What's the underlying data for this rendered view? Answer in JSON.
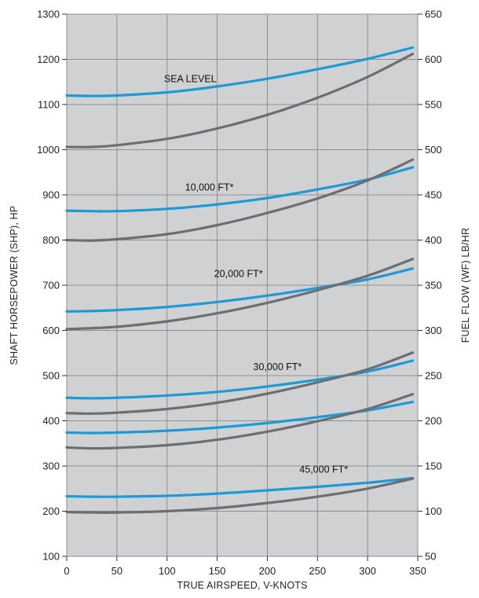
{
  "chart_data": {
    "type": "line",
    "title": "",
    "xlabel": "TRUE AIRSPEED, V-KNOTS",
    "ylabel_left": "SHAFT HORSEPOWER (SHP), HP",
    "ylabel_right": "FUEL FLOW (WF) LB/HR",
    "xlim": [
      0,
      350
    ],
    "ylim_left": [
      100,
      1300
    ],
    "ylim_right": [
      50,
      650
    ],
    "x_ticks": [
      "0",
      "50",
      "100",
      "150",
      "200",
      "250",
      "300",
      "350"
    ],
    "y_left_ticks": [
      "100",
      "200",
      "300",
      "400",
      "500",
      "600",
      "700",
      "800",
      "900",
      "1000",
      "1100",
      "1200",
      "1300"
    ],
    "y_right_ticks": [
      "50",
      "100",
      "150",
      "200",
      "250",
      "300",
      "350",
      "400",
      "450",
      "500",
      "550",
      "600",
      "650"
    ],
    "grid": true,
    "colors": {
      "shp": "#1b9ad6",
      "fuel": "#6d6e71",
      "background": "#cfd1d3",
      "grid": "#8c8e91"
    },
    "altitude_labels": [
      {
        "text": "SEA LEVEL",
        "x": 97,
        "y": 1150
      },
      {
        "text": "10,000 FT*",
        "x": 118,
        "y": 910
      },
      {
        "text": "20,000 FT*",
        "x": 147,
        "y": 718
      },
      {
        "text": "30,000 FT*",
        "x": 186,
        "y": 512
      },
      {
        "text": "45,000 FT*",
        "x": 232,
        "y": 285
      }
    ],
    "series": [
      {
        "group": "SEA LEVEL",
        "kind": "shp",
        "axis": "left",
        "points": [
          [
            0,
            1120
          ],
          [
            25,
            1119
          ],
          [
            50,
            1120
          ],
          [
            100,
            1127
          ],
          [
            150,
            1140
          ],
          [
            200,
            1157
          ],
          [
            250,
            1178
          ],
          [
            300,
            1201
          ],
          [
            345,
            1226
          ]
        ]
      },
      {
        "group": "SEA LEVEL",
        "kind": "fuel",
        "axis": "left",
        "points": [
          [
            0,
            1006
          ],
          [
            25,
            1006
          ],
          [
            50,
            1010
          ],
          [
            100,
            1024
          ],
          [
            150,
            1047
          ],
          [
            200,
            1077
          ],
          [
            250,
            1115
          ],
          [
            300,
            1161
          ],
          [
            345,
            1212
          ]
        ]
      },
      {
        "group": "10,000 FT*",
        "kind": "shp",
        "axis": "left",
        "points": [
          [
            0,
            865
          ],
          [
            25,
            864
          ],
          [
            50,
            864
          ],
          [
            100,
            869
          ],
          [
            150,
            879
          ],
          [
            200,
            893
          ],
          [
            250,
            912
          ],
          [
            300,
            934
          ],
          [
            345,
            961
          ]
        ]
      },
      {
        "group": "10,000 FT*",
        "kind": "fuel",
        "axis": "left",
        "points": [
          [
            0,
            800
          ],
          [
            25,
            799
          ],
          [
            50,
            802
          ],
          [
            100,
            813
          ],
          [
            150,
            833
          ],
          [
            200,
            860
          ],
          [
            250,
            892
          ],
          [
            300,
            932
          ],
          [
            345,
            978
          ]
        ]
      },
      {
        "group": "20,000 FT*",
        "kind": "shp",
        "axis": "left",
        "points": [
          [
            0,
            642
          ],
          [
            25,
            643
          ],
          [
            50,
            645
          ],
          [
            100,
            652
          ],
          [
            150,
            663
          ],
          [
            200,
            677
          ],
          [
            250,
            694
          ],
          [
            300,
            713
          ],
          [
            345,
            737
          ]
        ]
      },
      {
        "group": "20,000 FT*",
        "kind": "fuel",
        "axis": "left",
        "points": [
          [
            0,
            603
          ],
          [
            25,
            605
          ],
          [
            50,
            608
          ],
          [
            100,
            620
          ],
          [
            150,
            638
          ],
          [
            200,
            661
          ],
          [
            250,
            689
          ],
          [
            300,
            721
          ],
          [
            345,
            758
          ]
        ]
      },
      {
        "group": "30,000 FT*",
        "kind": "shp",
        "axis": "left",
        "points": [
          [
            0,
            451
          ],
          [
            25,
            450
          ],
          [
            50,
            451
          ],
          [
            100,
            456
          ],
          [
            150,
            464
          ],
          [
            200,
            476
          ],
          [
            250,
            491
          ],
          [
            300,
            509
          ],
          [
            345,
            533
          ]
        ]
      },
      {
        "group": "30,000 FT*",
        "kind": "fuel",
        "axis": "left",
        "points": [
          [
            0,
            417
          ],
          [
            25,
            416
          ],
          [
            50,
            418
          ],
          [
            100,
            426
          ],
          [
            150,
            440
          ],
          [
            200,
            460
          ],
          [
            250,
            485
          ],
          [
            300,
            514
          ],
          [
            345,
            551
          ]
        ]
      },
      {
        "group": "30,000 FT*",
        "kind": "shp",
        "axis": "left",
        "points": [
          [
            0,
            374
          ],
          [
            25,
            373
          ],
          [
            50,
            374
          ],
          [
            100,
            378
          ],
          [
            150,
            385
          ],
          [
            200,
            395
          ],
          [
            250,
            408
          ],
          [
            300,
            423
          ],
          [
            345,
            442
          ]
        ]
      },
      {
        "group": "30,000 FT*",
        "kind": "fuel",
        "axis": "left",
        "points": [
          [
            0,
            341
          ],
          [
            25,
            339
          ],
          [
            50,
            340
          ],
          [
            100,
            346
          ],
          [
            150,
            358
          ],
          [
            200,
            376
          ],
          [
            250,
            399
          ],
          [
            300,
            426
          ],
          [
            345,
            459
          ]
        ]
      },
      {
        "group": "45,000 FT*",
        "kind": "shp",
        "axis": "left",
        "points": [
          [
            0,
            233
          ],
          [
            25,
            232
          ],
          [
            50,
            232
          ],
          [
            100,
            234
          ],
          [
            150,
            239
          ],
          [
            200,
            246
          ],
          [
            250,
            254
          ],
          [
            300,
            263
          ],
          [
            345,
            273
          ]
        ]
      },
      {
        "group": "45,000 FT*",
        "kind": "fuel",
        "axis": "left",
        "points": [
          [
            0,
            198
          ],
          [
            25,
            197
          ],
          [
            50,
            197
          ],
          [
            100,
            200
          ],
          [
            150,
            207
          ],
          [
            200,
            218
          ],
          [
            250,
            232
          ],
          [
            300,
            250
          ],
          [
            345,
            272
          ]
        ]
      }
    ]
  }
}
